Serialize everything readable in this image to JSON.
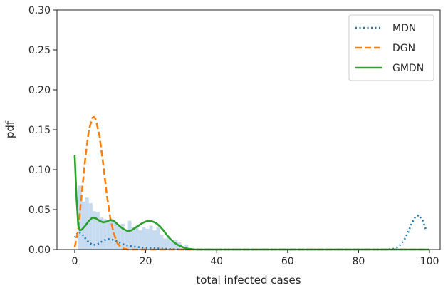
{
  "chart_data": {
    "type": "line",
    "title": "",
    "xlabel": "total infected cases",
    "ylabel": "pdf",
    "xlim": [
      -5,
      103
    ],
    "ylim": [
      0,
      0.3
    ],
    "x_ticks": [
      0,
      20,
      40,
      60,
      80,
      100
    ],
    "x_tick_labels": [
      "0",
      "20",
      "40",
      "60",
      "80",
      "100"
    ],
    "y_ticks": [
      0.0,
      0.05,
      0.1,
      0.15,
      0.2,
      0.25,
      0.3
    ],
    "y_tick_labels": [
      "0.00",
      "0.05",
      "0.10",
      "0.15",
      "0.20",
      "0.25",
      "0.30"
    ],
    "grid": false,
    "legend_position": "top-right",
    "histogram": {
      "color": "#c6dbef",
      "bins": [
        {
          "x0": 1,
          "x1": 2,
          "y": 0.08
        },
        {
          "x0": 2,
          "x1": 3,
          "y": 0.06
        },
        {
          "x0": 3,
          "x1": 4,
          "y": 0.065
        },
        {
          "x0": 4,
          "x1": 5,
          "y": 0.058
        },
        {
          "x0": 5,
          "x1": 6,
          "y": 0.048
        },
        {
          "x0": 6,
          "x1": 7,
          "y": 0.047
        },
        {
          "x0": 7,
          "x1": 8,
          "y": 0.04
        },
        {
          "x0": 8,
          "x1": 9,
          "y": 0.038
        },
        {
          "x0": 9,
          "x1": 10,
          "y": 0.036
        },
        {
          "x0": 10,
          "x1": 11,
          "y": 0.038
        },
        {
          "x0": 11,
          "x1": 12,
          "y": 0.034
        },
        {
          "x0": 12,
          "x1": 13,
          "y": 0.03
        },
        {
          "x0": 13,
          "x1": 14,
          "y": 0.032
        },
        {
          "x0": 14,
          "x1": 15,
          "y": 0.024
        },
        {
          "x0": 15,
          "x1": 16,
          "y": 0.036
        },
        {
          "x0": 16,
          "x1": 17,
          "y": 0.028
        },
        {
          "x0": 17,
          "x1": 18,
          "y": 0.03
        },
        {
          "x0": 18,
          "x1": 19,
          "y": 0.024
        },
        {
          "x0": 19,
          "x1": 20,
          "y": 0.028
        },
        {
          "x0": 20,
          "x1": 21,
          "y": 0.026
        },
        {
          "x0": 21,
          "x1": 22,
          "y": 0.03
        },
        {
          "x0": 22,
          "x1": 23,
          "y": 0.024
        },
        {
          "x0": 23,
          "x1": 24,
          "y": 0.028
        },
        {
          "x0": 24,
          "x1": 25,
          "y": 0.018
        },
        {
          "x0": 25,
          "x1": 26,
          "y": 0.014
        },
        {
          "x0": 26,
          "x1": 27,
          "y": 0.016
        },
        {
          "x0": 27,
          "x1": 28,
          "y": 0.01
        },
        {
          "x0": 28,
          "x1": 29,
          "y": 0.012
        },
        {
          "x0": 29,
          "x1": 30,
          "y": 0.009
        },
        {
          "x0": 30,
          "x1": 31,
          "y": 0.004
        },
        {
          "x0": 31,
          "x1": 32,
          "y": 0.006
        },
        {
          "x0": 32,
          "x1": 33,
          "y": 0.002
        }
      ]
    },
    "series": [
      {
        "name": "MDN",
        "color": "#1f77b4",
        "dash": "dotted",
        "x": [
          0,
          1,
          2,
          3,
          4,
          5,
          6,
          7,
          8,
          9,
          10,
          11,
          12,
          13,
          14,
          15,
          16,
          18,
          20,
          25,
          30,
          40,
          60,
          80,
          88,
          90,
          91,
          92,
          93,
          94,
          95,
          96,
          97,
          98,
          99
        ],
        "y": [
          0.015,
          0.022,
          0.02,
          0.014,
          0.009,
          0.006,
          0.006,
          0.008,
          0.011,
          0.013,
          0.013,
          0.012,
          0.01,
          0.008,
          0.006,
          0.005,
          0.004,
          0.003,
          0.002,
          0.001,
          0.0,
          0.0,
          0.0,
          0.0,
          0.0,
          0.001,
          0.003,
          0.007,
          0.013,
          0.022,
          0.033,
          0.041,
          0.043,
          0.037,
          0.025
        ]
      },
      {
        "name": "DGN",
        "color": "#ff7f0e",
        "dash": "dashed",
        "x": [
          0,
          1,
          2,
          3,
          4,
          5,
          5.5,
          6,
          7,
          8,
          9,
          10,
          11,
          12,
          13,
          14,
          15,
          17,
          20,
          30,
          40,
          60,
          80,
          100
        ],
        "y": [
          0.003,
          0.025,
          0.07,
          0.115,
          0.15,
          0.165,
          0.166,
          0.162,
          0.142,
          0.108,
          0.07,
          0.04,
          0.02,
          0.008,
          0.003,
          0.001,
          0.0,
          0.0,
          0.0,
          0.0,
          0.0,
          0.0,
          0.0,
          0.0
        ]
      },
      {
        "name": "GMDN",
        "color": "#2ca02c",
        "dash": "solid",
        "x": [
          0,
          0.5,
          1,
          1.5,
          2,
          3,
          4,
          5,
          6,
          7,
          8,
          9,
          10,
          11,
          12,
          13,
          14,
          15,
          16,
          17,
          18,
          19,
          20,
          21,
          22,
          23,
          24,
          25,
          26,
          27,
          28,
          29,
          30,
          31,
          32,
          34,
          36,
          40,
          60,
          80,
          100
        ],
        "y": [
          0.118,
          0.065,
          0.03,
          0.024,
          0.025,
          0.03,
          0.036,
          0.04,
          0.039,
          0.036,
          0.034,
          0.035,
          0.037,
          0.036,
          0.032,
          0.028,
          0.025,
          0.023,
          0.024,
          0.027,
          0.03,
          0.033,
          0.035,
          0.036,
          0.035,
          0.033,
          0.029,
          0.024,
          0.018,
          0.013,
          0.009,
          0.006,
          0.004,
          0.002,
          0.001,
          0.0,
          0.0,
          0.0,
          0.0,
          0.0,
          0.0
        ]
      }
    ]
  }
}
